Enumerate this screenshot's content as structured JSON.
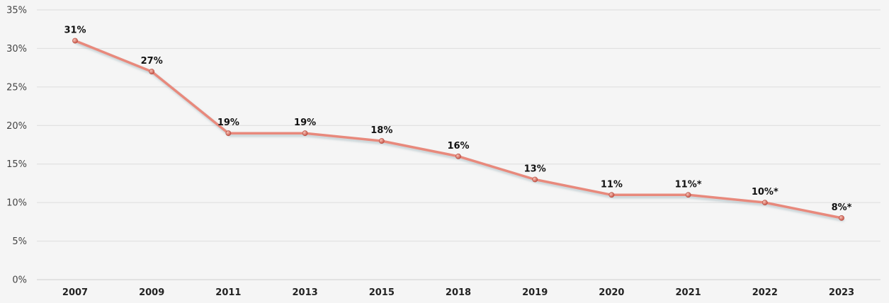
{
  "chart_data": {
    "type": "line",
    "title": "",
    "xlabel": "",
    "ylabel": "",
    "categories": [
      "2007",
      "2009",
      "2011",
      "2013",
      "2015",
      "2018",
      "2019",
      "2020",
      "2021",
      "2022",
      "2023"
    ],
    "series": [
      {
        "values": [
          31,
          27,
          19,
          19,
          18,
          16,
          13,
          11,
          11,
          10,
          8
        ],
        "data_labels": [
          "31%",
          "27%",
          "19%",
          "19%",
          "18%",
          "16%",
          "13%",
          "11%",
          "11%*",
          "10%*",
          "8%*"
        ],
        "color": "#e8897c"
      }
    ],
    "ylim": [
      0,
      35
    ],
    "yticks": [
      0,
      5,
      10,
      15,
      20,
      25,
      30,
      35
    ],
    "ytick_labels": [
      "0%",
      "5%",
      "10%",
      "15%",
      "20%",
      "25%",
      "30%",
      "35%"
    ],
    "grid": true,
    "legend": "none"
  }
}
